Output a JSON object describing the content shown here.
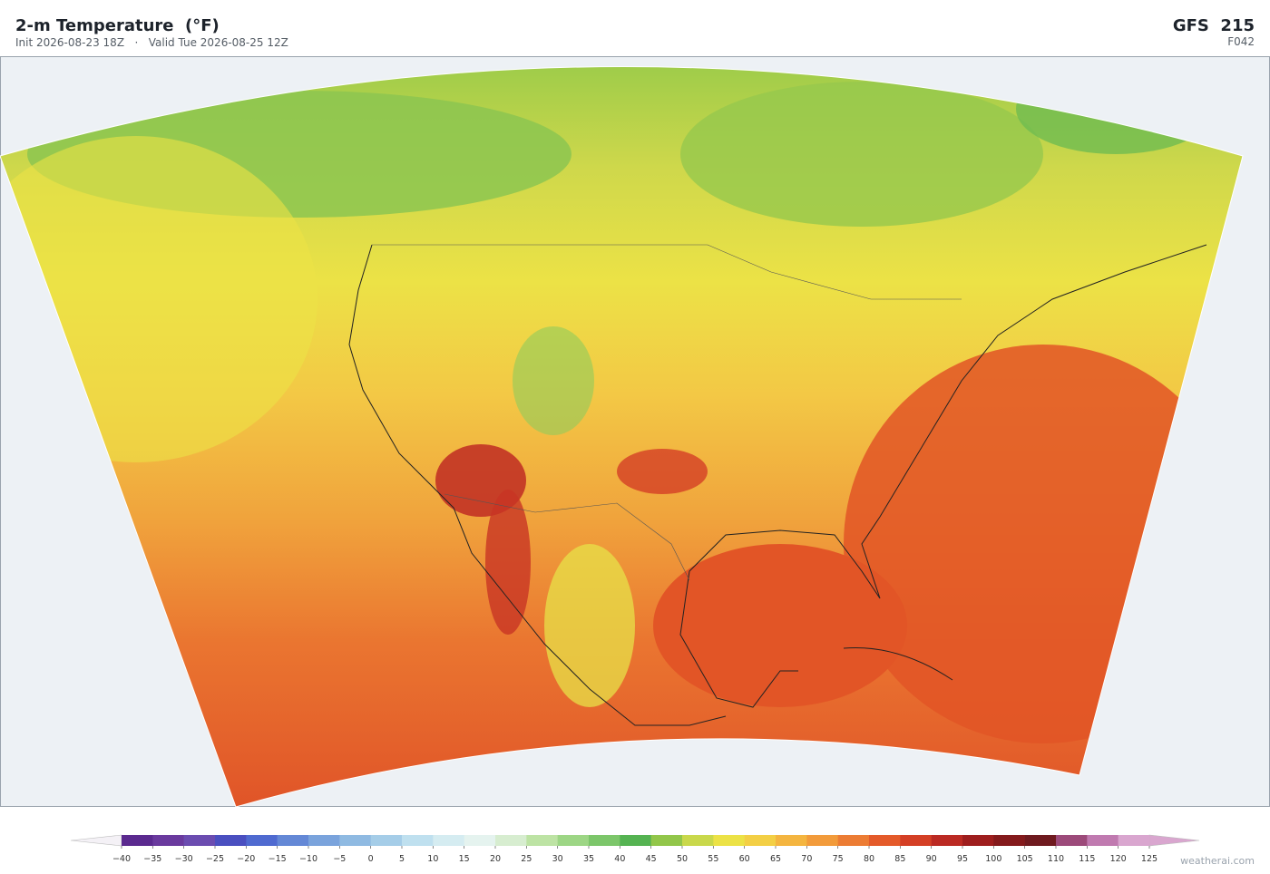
{
  "header": {
    "title": "2-m Temperature  (°F)",
    "subtitle": "Init 2026-08-23 18Z   ·   Valid Tue 2026-08-25 12Z",
    "model": "GFS  215",
    "forecast_hour": "F042"
  },
  "colorbar": {
    "ticks": [
      {
        "value": -40,
        "label": "−40"
      },
      {
        "value": -35,
        "label": "−35"
      },
      {
        "value": -30,
        "label": "−30"
      },
      {
        "value": -25,
        "label": "−25"
      },
      {
        "value": -20,
        "label": "−20"
      },
      {
        "value": -15,
        "label": "−15"
      },
      {
        "value": -10,
        "label": "−10"
      },
      {
        "value": -5,
        "label": "−5"
      },
      0,
      5,
      10,
      15,
      20,
      25,
      30,
      35,
      40,
      45,
      50,
      55,
      60,
      65,
      70,
      75,
      80,
      85,
      90,
      95,
      100,
      105,
      110,
      115,
      120,
      125
    ],
    "colors": [
      "#5b2a8f",
      "#6a3a9e",
      "#6b4cb0",
      "#4a4fc0",
      "#4f6ad0",
      "#6488d6",
      "#7aa3dc",
      "#8fbae2",
      "#a5cde8",
      "#bfe0ef",
      "#d5ecf1",
      "#e5f3ef",
      "#d7edd0",
      "#bde3a4",
      "#9dd685",
      "#7cc66a",
      "#55b352",
      "#92c64a",
      "#c9d84b",
      "#ece246",
      "#f3cf45",
      "#f4b540",
      "#f29b3b",
      "#ec7c34",
      "#e45a2a",
      "#d43f25",
      "#bb2a23",
      "#9e1e1e",
      "#841a1c",
      "#6f1a1f",
      "#9c4a7a",
      "#c07ab0",
      "#d9a6cf"
    ],
    "extend_colors": [
      "#f4f1f6",
      "#d9a6cf"
    ]
  },
  "footer": {
    "credit": "weatherai.com"
  }
}
